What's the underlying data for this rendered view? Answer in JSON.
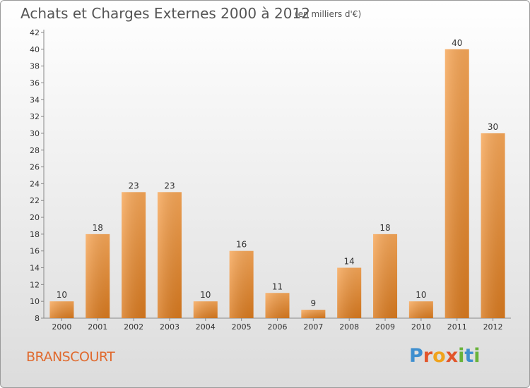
{
  "header": {
    "title": "Achats et Charges Externes 2000 à 2012",
    "unit": "(en milliers d'€)"
  },
  "footer": {
    "place": "BRANSCOURT",
    "logo": "Proxiti"
  },
  "colors": {
    "bar_top": "#f7a758",
    "bar_bottom": "#d97a1f",
    "place_text": "#e06a2e",
    "logo_letters": [
      "#3f8fcf",
      "#e2552b",
      "#f0a31c",
      "#e2552b",
      "#69b33a",
      "#3f8fcf",
      "#69b33a"
    ]
  },
  "chart_data": {
    "type": "bar",
    "title": "Achats et Charges Externes 2000 à 2012",
    "subtitle": "(en milliers d'€)",
    "categories": [
      "2000",
      "2001",
      "2002",
      "2003",
      "2004",
      "2005",
      "2006",
      "2007",
      "2008",
      "2009",
      "2010",
      "2011",
      "2012"
    ],
    "values": [
      10,
      18,
      23,
      23,
      10,
      16,
      11,
      9,
      14,
      18,
      10,
      40,
      30
    ],
    "ylim": [
      8,
      42
    ],
    "yticks": [
      8,
      10,
      12,
      14,
      16,
      18,
      20,
      22,
      24,
      26,
      28,
      30,
      32,
      34,
      36,
      38,
      40,
      42
    ],
    "xlabel": "",
    "ylabel": "",
    "grid": false,
    "legend": "none"
  }
}
